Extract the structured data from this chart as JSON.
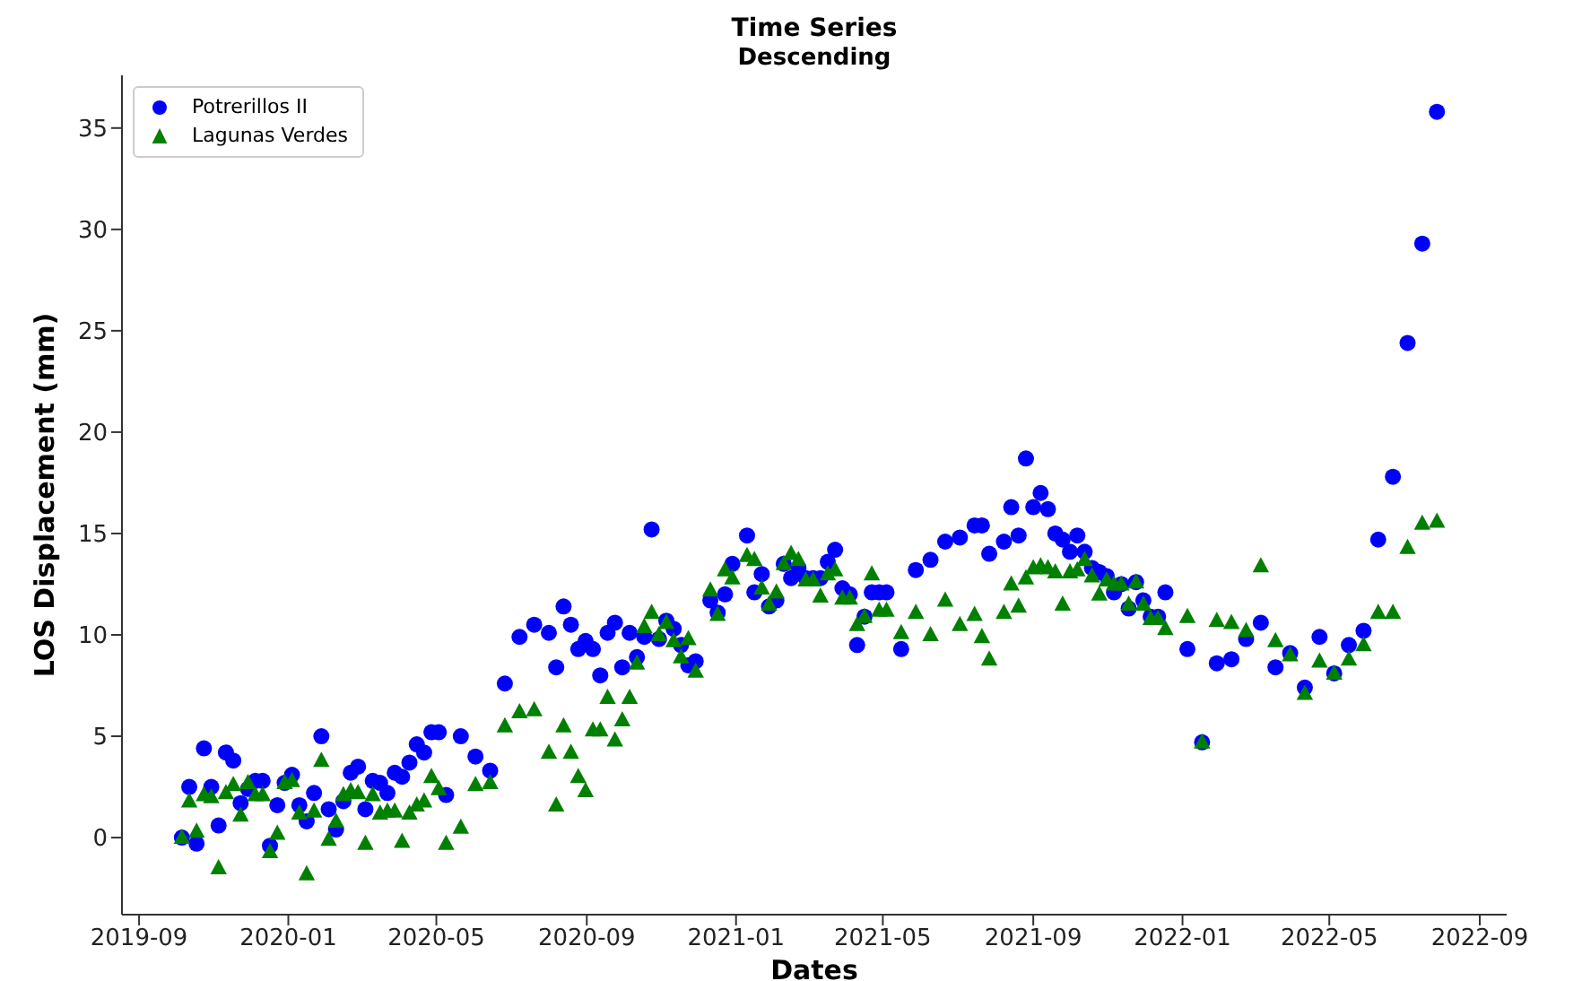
{
  "chart_data": {
    "type": "scatter",
    "title": "Time Series",
    "subtitle": "Descending",
    "xlabel": "Dates",
    "ylabel": "LOS Displacement (mm)",
    "x": [
      "2019-10-06",
      "2019-10-12",
      "2019-10-18",
      "2019-10-24",
      "2019-10-30",
      "2019-11-05",
      "2019-11-11",
      "2019-11-17",
      "2019-11-23",
      "2019-11-29",
      "2019-12-05",
      "2019-12-11",
      "2019-12-17",
      "2019-12-23",
      "2019-12-29",
      "2020-01-04",
      "2020-01-10",
      "2020-01-16",
      "2020-01-22",
      "2020-01-28",
      "2020-02-03",
      "2020-02-09",
      "2020-02-15",
      "2020-02-21",
      "2020-02-27",
      "2020-03-04",
      "2020-03-10",
      "2020-03-16",
      "2020-03-22",
      "2020-03-28",
      "2020-04-03",
      "2020-04-09",
      "2020-04-15",
      "2020-04-21",
      "2020-04-27",
      "2020-05-03",
      "2020-05-09",
      "2020-05-21",
      "2020-06-02",
      "2020-06-14",
      "2020-06-26",
      "2020-07-08",
      "2020-07-20",
      "2020-08-01",
      "2020-08-07",
      "2020-08-13",
      "2020-08-19",
      "2020-08-25",
      "2020-08-31",
      "2020-09-06",
      "2020-09-12",
      "2020-09-18",
      "2020-09-24",
      "2020-09-30",
      "2020-10-06",
      "2020-10-12",
      "2020-10-18",
      "2020-10-24",
      "2020-10-30",
      "2020-11-05",
      "2020-11-11",
      "2020-11-17",
      "2020-11-23",
      "2020-11-29",
      "2020-12-11",
      "2020-12-17",
      "2020-12-23",
      "2020-12-29",
      "2021-01-10",
      "2021-01-16",
      "2021-01-22",
      "2021-01-28",
      "2021-02-03",
      "2021-02-09",
      "2021-02-15",
      "2021-02-21",
      "2021-02-27",
      "2021-03-05",
      "2021-03-11",
      "2021-03-17",
      "2021-03-23",
      "2021-03-29",
      "2021-04-04",
      "2021-04-10",
      "2021-04-16",
      "2021-04-22",
      "2021-04-28",
      "2021-05-04",
      "2021-05-16",
      "2021-05-28",
      "2021-06-09",
      "2021-06-21",
      "2021-07-03",
      "2021-07-15",
      "2021-07-21",
      "2021-07-27",
      "2021-08-08",
      "2021-08-14",
      "2021-08-20",
      "2021-08-26",
      "2021-09-01",
      "2021-09-07",
      "2021-09-13",
      "2021-09-19",
      "2021-09-25",
      "2021-10-01",
      "2021-10-07",
      "2021-10-13",
      "2021-10-19",
      "2021-10-25",
      "2021-10-31",
      "2021-11-06",
      "2021-11-12",
      "2021-11-18",
      "2021-11-24",
      "2021-11-30",
      "2021-12-06",
      "2021-12-12",
      "2021-12-18",
      "2022-01-05",
      "2022-01-17",
      "2022-01-29",
      "2022-02-10",
      "2022-02-22",
      "2022-03-06",
      "2022-03-18",
      "2022-03-30",
      "2022-04-11",
      "2022-04-23",
      "2022-05-05",
      "2022-05-17",
      "2022-05-29",
      "2022-06-10",
      "2022-06-22",
      "2022-07-04",
      "2022-07-16",
      "2022-07-28"
    ],
    "series": [
      {
        "name": "Potrerillos II",
        "color": "#0000ff",
        "marker": "circle",
        "values": [
          0,
          2.5,
          -0.3,
          4.4,
          2.5,
          0.6,
          4.2,
          3.8,
          1.7,
          2.4,
          2.8,
          2.8,
          -0.4,
          1.6,
          2.7,
          3.1,
          1.6,
          0.8,
          2.2,
          5.0,
          1.4,
          0.4,
          1.8,
          3.2,
          3.5,
          1.4,
          2.8,
          2.7,
          2.2,
          3.2,
          3.0,
          3.7,
          4.6,
          4.2,
          5.2,
          5.2,
          2.1,
          5.0,
          4.0,
          3.3,
          7.6,
          9.9,
          10.5,
          10.1,
          8.4,
          11.4,
          10.5,
          9.3,
          9.7,
          9.3,
          8.0,
          10.1,
          10.6,
          8.4,
          10.1,
          8.9,
          9.9,
          15.2,
          9.8,
          10.7,
          10.3,
          9.5,
          8.5,
          8.7,
          11.7,
          11.1,
          12.0,
          13.5,
          14.9,
          12.1,
          13.0,
          11.4,
          11.7,
          13.5,
          12.8,
          13.3,
          12.8,
          12.8,
          12.8,
          13.6,
          14.2,
          12.3,
          12.0,
          9.5,
          10.9,
          12.1,
          12.1,
          12.1,
          9.3,
          13.2,
          13.7,
          14.6,
          14.8,
          15.4,
          15.4,
          14.0,
          14.6,
          16.3,
          14.9,
          18.7,
          16.3,
          17.0,
          16.2,
          15.0,
          14.7,
          14.1,
          14.9,
          14.1,
          13.3,
          13.1,
          12.9,
          12.1,
          12.5,
          11.3,
          12.6,
          11.7,
          10.9,
          10.9,
          12.1,
          9.3,
          4.7,
          8.6,
          8.8,
          9.8,
          10.6,
          8.4,
          9.1,
          7.4,
          9.9,
          8.1,
          9.5,
          10.2,
          14.7,
          17.8,
          24.4,
          29.3,
          35.8
        ]
      },
      {
        "name": "Lagunas Verdes",
        "color": "#008000",
        "marker": "triangle",
        "values": [
          0,
          1.8,
          0.3,
          2.1,
          2.0,
          -1.5,
          2.2,
          2.6,
          1.1,
          2.7,
          2.1,
          2.1,
          -0.7,
          0.2,
          2.7,
          2.8,
          1.2,
          -1.8,
          1.3,
          3.8,
          -0.1,
          0.8,
          2.1,
          2.3,
          2.2,
          -0.3,
          2.1,
          1.2,
          1.3,
          1.3,
          -0.2,
          1.2,
          1.6,
          1.8,
          3.0,
          2.4,
          -0.3,
          0.5,
          2.6,
          2.7,
          5.5,
          6.2,
          6.3,
          4.2,
          1.6,
          5.5,
          4.2,
          3.0,
          2.3,
          5.3,
          5.3,
          6.9,
          4.8,
          5.8,
          6.9,
          8.6,
          10.4,
          11.1,
          10.0,
          10.6,
          9.7,
          8.9,
          9.8,
          8.2,
          12.2,
          11.0,
          13.2,
          12.8,
          13.9,
          13.7,
          12.3,
          11.5,
          12.1,
          13.5,
          14.0,
          13.7,
          12.7,
          12.7,
          11.9,
          13.0,
          13.2,
          11.8,
          11.8,
          10.5,
          10.9,
          13.0,
          11.2,
          11.2,
          10.1,
          11.1,
          10.0,
          11.7,
          10.5,
          11.0,
          9.9,
          8.8,
          11.1,
          12.5,
          11.4,
          12.8,
          13.3,
          13.4,
          13.3,
          13.1,
          11.5,
          13.1,
          13.2,
          13.7,
          12.9,
          12.0,
          12.7,
          12.5,
          12.5,
          11.5,
          12.6,
          11.5,
          10.8,
          10.8,
          10.3,
          10.9,
          4.7,
          10.7,
          10.6,
          10.2,
          13.4,
          9.7,
          9.0,
          7.1,
          8.7,
          8.1,
          8.8,
          9.5,
          11.1,
          11.1,
          14.3,
          15.5,
          15.6
        ]
      }
    ],
    "xlim": [
      "2019-08-18",
      "2022-09-23"
    ],
    "xticks": [
      "2019-09",
      "2020-01",
      "2020-05",
      "2020-09",
      "2021-01",
      "2021-05",
      "2021-09",
      "2022-01",
      "2022-05",
      "2022-09"
    ],
    "ylim": [
      -3.8,
      37.6
    ],
    "yticks": [
      0,
      5,
      10,
      15,
      20,
      25,
      30,
      35
    ],
    "legend": "top left"
  }
}
